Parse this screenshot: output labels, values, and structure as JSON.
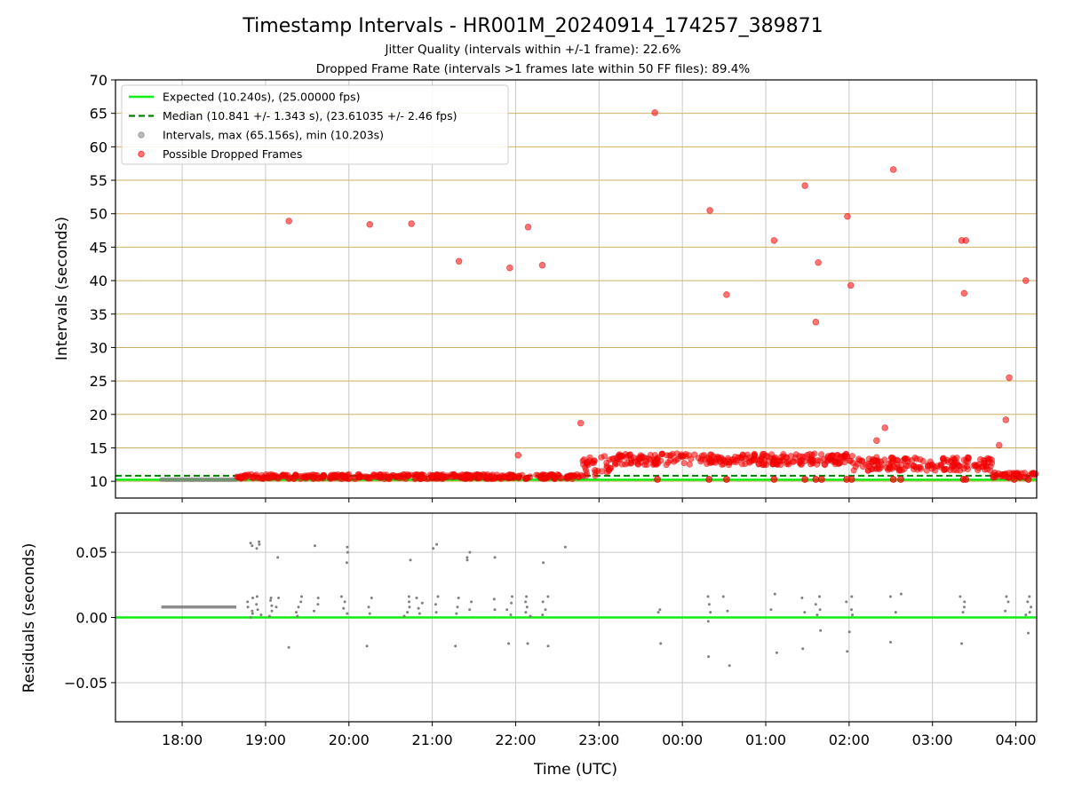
{
  "title": "Timestamp Intervals - HR001M_20240914_174257_389871",
  "subtitle_1": "Jitter Quality (intervals within +/-1 frame): 22.6%",
  "subtitle_2": "Dropped Frame Rate (intervals >1 frames late within 50 FF files): 89.4%",
  "colors": {
    "expected": "#11ee11",
    "median": "#008000",
    "intervals": "#808080",
    "dropped": "#ff0000",
    "hgrid": "#d2b060",
    "vgrid": "#c8c8c8"
  },
  "chart_data": [
    {
      "type": "scatter",
      "panel": "top",
      "ylabel": "Intervals (seconds)",
      "ylim": [
        7.5,
        70
      ],
      "yticks": [
        10,
        15,
        20,
        25,
        30,
        35,
        40,
        45,
        50,
        55,
        60,
        65,
        70
      ],
      "ytick_labels": [
        "10",
        "15",
        "20",
        "25",
        "30",
        "35",
        "40",
        "45",
        "50",
        "55",
        "60",
        "65",
        "70"
      ],
      "xlim_hours": [
        17.2,
        28.25
      ],
      "grid": true,
      "legend_placement": "top-left",
      "legend": [
        {
          "key": "expected",
          "label": "Expected (10.240s), (25.00000 fps)",
          "style": "line"
        },
        {
          "key": "median",
          "label": "Median (10.841 +/- 1.343 s), (23.61035 +/- 2.46 fps)",
          "style": "dashed"
        },
        {
          "key": "intervals",
          "label": "Intervals, max (65.156s), min (10.203s)",
          "style": "marker"
        },
        {
          "key": "dropped",
          "label": "Possible Dropped Frames",
          "style": "marker"
        }
      ],
      "expected_value": 10.24,
      "median_value": 10.841,
      "intervals_segment": {
        "start_hour": 17.75,
        "end_hour": 18.65,
        "value": 10.25
      },
      "dropped_frame_bands": [
        {
          "start_hour": 18.65,
          "end_hour": 22.78,
          "center": 10.7,
          "spread": 0.35
        },
        {
          "start_hour": 22.78,
          "end_hour": 23.15,
          "center": 12.3,
          "spread": 1.6
        },
        {
          "start_hour": 23.15,
          "end_hour": 26.05,
          "center": 13.3,
          "spread": 0.85
        },
        {
          "start_hour": 26.05,
          "end_hour": 27.72,
          "center": 12.6,
          "spread": 1.0
        },
        {
          "start_hour": 27.72,
          "end_hour": 28.25,
          "center": 10.9,
          "spread": 0.4
        }
      ],
      "dropped_frame_outliers": [
        {
          "x": 19.28,
          "y": 48.9
        },
        {
          "x": 20.25,
          "y": 48.4
        },
        {
          "x": 20.75,
          "y": 48.5
        },
        {
          "x": 21.32,
          "y": 42.9
        },
        {
          "x": 21.93,
          "y": 41.9
        },
        {
          "x": 22.03,
          "y": 13.9
        },
        {
          "x": 22.15,
          "y": 48.0
        },
        {
          "x": 22.32,
          "y": 42.3
        },
        {
          "x": 22.78,
          "y": 18.7
        },
        {
          "x": 23.67,
          "y": 65.1
        },
        {
          "x": 24.33,
          "y": 50.5
        },
        {
          "x": 24.53,
          "y": 37.9
        },
        {
          "x": 25.1,
          "y": 46.0
        },
        {
          "x": 25.47,
          "y": 54.2
        },
        {
          "x": 25.6,
          "y": 33.8
        },
        {
          "x": 25.63,
          "y": 42.7
        },
        {
          "x": 25.98,
          "y": 49.6
        },
        {
          "x": 26.02,
          "y": 39.3
        },
        {
          "x": 26.43,
          "y": 18.0
        },
        {
          "x": 26.33,
          "y": 16.1
        },
        {
          "x": 26.53,
          "y": 56.6
        },
        {
          "x": 27.35,
          "y": 46.0
        },
        {
          "x": 27.4,
          "y": 46.0
        },
        {
          "x": 27.38,
          "y": 38.1
        },
        {
          "x": 27.8,
          "y": 15.4
        },
        {
          "x": 27.88,
          "y": 19.2
        },
        {
          "x": 27.92,
          "y": 25.5
        },
        {
          "x": 28.12,
          "y": 40.0
        }
      ],
      "dropped_frame_low": [
        {
          "x": 23.7,
          "y": 10.3
        },
        {
          "x": 24.32,
          "y": 10.3
        },
        {
          "x": 24.53,
          "y": 10.3
        },
        {
          "x": 25.1,
          "y": 10.3
        },
        {
          "x": 25.47,
          "y": 10.3
        },
        {
          "x": 25.6,
          "y": 10.3
        },
        {
          "x": 25.67,
          "y": 10.3
        },
        {
          "x": 25.97,
          "y": 10.3
        },
        {
          "x": 26.03,
          "y": 10.3
        },
        {
          "x": 26.53,
          "y": 10.3
        },
        {
          "x": 26.62,
          "y": 10.3
        },
        {
          "x": 27.37,
          "y": 10.3
        },
        {
          "x": 27.4,
          "y": 10.3
        },
        {
          "x": 27.98,
          "y": 10.3
        },
        {
          "x": 28.15,
          "y": 10.3
        }
      ]
    },
    {
      "type": "scatter",
      "panel": "bottom",
      "xlabel": "Time (UTC)",
      "ylabel": "Residuals (seconds)",
      "ylim": [
        -0.08,
        0.08
      ],
      "yticks": [
        -0.05,
        0.0,
        0.05
      ],
      "ytick_labels": [
        "−0.05",
        "0.00",
        "0.05"
      ],
      "xlim_hours": [
        17.2,
        28.25
      ],
      "xticks_hours": [
        18,
        19,
        20,
        21,
        22,
        23,
        24,
        25,
        26,
        27,
        28
      ],
      "xtick_labels": [
        "18:00",
        "19:00",
        "20:00",
        "21:00",
        "22:00",
        "23:00",
        "00:00",
        "01:00",
        "02:00",
        "03:00",
        "04:00"
      ],
      "grid": true,
      "zero_line": 0.0,
      "residual_segment": {
        "start_hour": 17.75,
        "end_hour": 18.65,
        "value": 0.008
      },
      "residual_clusters": [
        {
          "x": 18.82,
          "y": [
            0.057,
            0.055,
            0.015,
            0.012,
            0.008,
            0.005,
            0.003,
            0.0
          ]
        },
        {
          "x": 18.92,
          "y": [
            0.058,
            0.056,
            0.053,
            0.016,
            0.01,
            0.006,
            0.002
          ]
        },
        {
          "x": 19.05,
          "y": [
            0.015,
            0.013,
            0.009,
            0.005,
            0.001
          ]
        },
        {
          "x": 19.15,
          "y": [
            0.046,
            0.015,
            0.008
          ]
        },
        {
          "x": 19.28,
          "y": [
            -0.023
          ]
        },
        {
          "x": 19.4,
          "y": [
            0.016,
            0.012,
            0.008,
            0.004,
            0.001
          ]
        },
        {
          "x": 19.6,
          "y": [
            0.055,
            0.015,
            0.01,
            0.005
          ]
        },
        {
          "x": 19.95,
          "y": [
            0.054,
            0.05,
            0.042,
            0.016,
            0.012,
            0.007,
            0.003
          ]
        },
        {
          "x": 20.25,
          "y": [
            -0.022,
            0.015,
            0.008,
            0.003
          ]
        },
        {
          "x": 20.7,
          "y": [
            0.044,
            0.016,
            0.012,
            0.008,
            0.004,
            0.001
          ]
        },
        {
          "x": 20.85,
          "y": [
            0.015,
            0.011,
            0.007,
            0.003
          ]
        },
        {
          "x": 21.05,
          "y": [
            0.056,
            0.053,
            0.016,
            0.01,
            0.004
          ]
        },
        {
          "x": 21.3,
          "y": [
            -0.022,
            0.015,
            0.008,
            0.003
          ]
        },
        {
          "x": 21.45,
          "y": [
            0.05,
            0.046,
            0.044,
            0.012,
            0.006
          ]
        },
        {
          "x": 21.75,
          "y": [
            0.046,
            0.014,
            0.006
          ]
        },
        {
          "x": 21.93,
          "y": [
            -0.02,
            0.016,
            0.011,
            0.006,
            0.002
          ]
        },
        {
          "x": 22.15,
          "y": [
            -0.02,
            0.016,
            0.012,
            0.008,
            0.004,
            0.001
          ]
        },
        {
          "x": 22.35,
          "y": [
            -0.022,
            0.042,
            0.016,
            0.012,
            0.006,
            0.002
          ]
        },
        {
          "x": 22.6,
          "y": [
            0.054
          ]
        },
        {
          "x": 23.7,
          "y": [
            -0.02,
            0.006,
            0.004
          ]
        },
        {
          "x": 24.33,
          "y": [
            -0.03,
            -0.003,
            0.016,
            0.01,
            0.004
          ]
        },
        {
          "x": 24.53,
          "y": [
            -0.037,
            0.016,
            0.005
          ]
        },
        {
          "x": 25.1,
          "y": [
            -0.027,
            0.018,
            0.006
          ]
        },
        {
          "x": 25.47,
          "y": [
            -0.024,
            0.015,
            0.004
          ]
        },
        {
          "x": 25.63,
          "y": [
            -0.01,
            0.016,
            0.01,
            0.006,
            0.002
          ]
        },
        {
          "x": 26.0,
          "y": [
            -0.011,
            -0.026,
            0.016,
            0.012,
            0.006,
            0.002
          ]
        },
        {
          "x": 26.53,
          "y": [
            -0.019,
            0.016,
            0.004
          ]
        },
        {
          "x": 26.65,
          "y": [
            0.018
          ]
        },
        {
          "x": 27.37,
          "y": [
            -0.02,
            0.016,
            0.012,
            0.008,
            0.004
          ]
        },
        {
          "x": 27.9,
          "y": [
            0.016,
            0.012,
            0.005
          ]
        },
        {
          "x": 28.15,
          "y": [
            -0.012,
            0.016,
            0.012,
            0.008,
            0.004,
            0.002
          ]
        }
      ]
    }
  ]
}
